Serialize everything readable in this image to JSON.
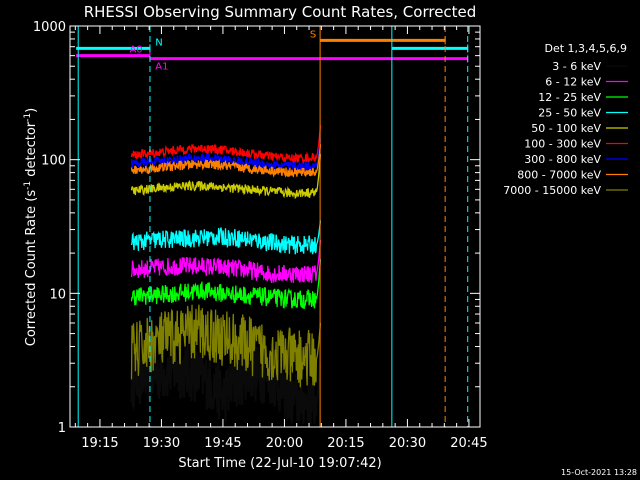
{
  "chart_data": {
    "type": "line",
    "title": "RHESSI Observing Summary Count Rates, Corrected",
    "xlabel": "Start Time (22-Jul-10 19:07:42)",
    "ylabel_main": "Corrected Count Rate (s",
    "ylabel_sup1": "-1",
    "ylabel_mid": " detector",
    "ylabel_sup2": "-1",
    "ylabel_end": ")",
    "yscale": "log",
    "ylim": [
      1,
      1000
    ],
    "xlim_minutes": [
      0,
      100
    ],
    "x_ticks": [
      {
        "m": 7.3,
        "label": "19:15"
      },
      {
        "m": 22.3,
        "label": "19:30"
      },
      {
        "m": 37.3,
        "label": "19:45"
      },
      {
        "m": 52.3,
        "label": "20:00"
      },
      {
        "m": 67.3,
        "label": "20:15"
      },
      {
        "m": 82.3,
        "label": "20:30"
      },
      {
        "m": 97.3,
        "label": "20:45"
      }
    ],
    "y_ticks": [
      {
        "v": 1000,
        "label": "1000"
      },
      {
        "v": 100,
        "label": "100"
      },
      {
        "v": 10,
        "label": "10"
      },
      {
        "v": 1,
        "label": "1"
      }
    ],
    "legend_title": "Det 1,3,4,5,6,9",
    "legend_position": "right",
    "series": [
      {
        "name": "3 - 6 keV",
        "color": "#000000",
        "levels": [
          2.3,
          2.5,
          2.7,
          2.4,
          1.7,
          2.6,
          2.4,
          1.6,
          1.5
        ],
        "end": 3.0
      },
      {
        "name": "6 - 12 keV",
        "color": "#ff00ff",
        "levels": [
          15,
          15.5,
          16,
          16,
          15.5,
          15,
          14,
          14,
          14
        ],
        "end": 25
      },
      {
        "name": "12 - 25 keV",
        "color": "#00ff00",
        "levels": [
          9.5,
          9.7,
          10,
          10.5,
          10,
          9.7,
          9.3,
          9.0,
          9.0
        ],
        "end": 18
      },
      {
        "name": "25 - 50 keV",
        "color": "#00ffff",
        "levels": [
          24,
          25,
          25.5,
          26,
          26.5,
          25.5,
          24,
          23,
          23
        ],
        "end": 35
      },
      {
        "name": "50 - 100 keV",
        "color": "#cccc00",
        "levels": [
          58,
          61,
          63,
          64,
          62,
          60,
          58,
          56,
          57
        ],
        "end": 110
      },
      {
        "name": "100 - 300 keV",
        "color": "#ff0000",
        "levels": [
          108,
          112,
          118,
          122,
          118,
          112,
          106,
          102,
          104
        ],
        "end": 180
      },
      {
        "name": "300 - 800 keV",
        "color": "#0000ff",
        "levels": [
          94,
          96,
          100,
          103,
          100,
          96,
          92,
          89,
          90
        ],
        "end": 145
      },
      {
        "name": "800 - 7000 keV",
        "color": "#ff8000",
        "levels": [
          83,
          86,
          90,
          93,
          90,
          86,
          83,
          80,
          81
        ],
        "end": 130
      },
      {
        "name": "7000 - 15000 keV",
        "color": "#808000",
        "levels": [
          3.6,
          4.3,
          4.8,
          5.2,
          4.6,
          4.1,
          3.6,
          3.3,
          3.2
        ],
        "end": 6.0
      }
    ],
    "data_start_minute": 15,
    "data_end_minute": 60,
    "flags": [
      {
        "label": "N",
        "color": "#00ffff",
        "value": 680,
        "segments": [
          [
            1.5,
            19.5
          ],
          [
            78.5,
            97
          ]
        ],
        "label_minute": 20.8
      },
      {
        "label": "A0",
        "color": "#ff00ff",
        "value": 600,
        "segments": [
          [
            1.5,
            19.5
          ]
        ],
        "label_minute": 14.5
      },
      {
        "label": "A1",
        "color": "#ff00ff",
        "value": 570,
        "segments": [
          [
            19.5,
            97
          ]
        ],
        "label_minute": 20.8
      },
      {
        "label": "S",
        "color": "#ff8000",
        "value": 780,
        "segments": [
          [
            61,
            91.5
          ]
        ],
        "label_minute": 58.5
      }
    ],
    "vlines": [
      {
        "minute": 2,
        "color": "#00ffff",
        "dashed": false
      },
      {
        "minute": 19.5,
        "color": "#00ffff",
        "dashed": true
      },
      {
        "minute": 61,
        "color": "#ff8000",
        "dashed": false
      },
      {
        "minute": 78.5,
        "color": "#00ffff",
        "dashed": false
      },
      {
        "minute": 91.5,
        "color": "#ff8000",
        "dashed": true
      },
      {
        "minute": 97,
        "color": "#00ffff",
        "dashed": true
      }
    ]
  },
  "footer": {
    "timestamp": "15-Oct-2021 13:28"
  }
}
